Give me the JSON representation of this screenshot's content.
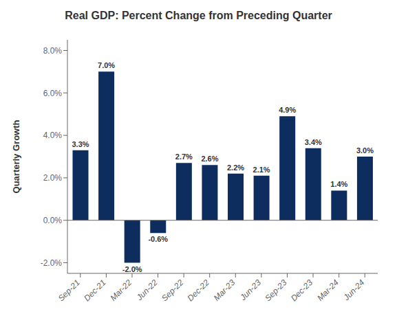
{
  "chart_data": {
    "type": "bar",
    "title": "Real GDP: Percent Change from Preceding Quarter",
    "ylabel": "Quarterly Growth",
    "categories": [
      "Sep-21",
      "Dec-21",
      "Mar-22",
      "Jun-22",
      "Sep-22",
      "Dec-22",
      "Mar-23",
      "Jun-23",
      "Sep-23",
      "Dec-23",
      "Mar-24",
      "Jun-24"
    ],
    "values": [
      3.3,
      7.0,
      -2.0,
      -0.6,
      2.7,
      2.6,
      2.2,
      2.1,
      4.9,
      3.4,
      1.4,
      3.0
    ],
    "value_labels": [
      "3.3%",
      "7.0%",
      "-2.0%",
      "-0.6%",
      "2.7%",
      "2.6%",
      "2.2%",
      "2.1%",
      "4.9%",
      "3.4%",
      "1.4%",
      "3.0%"
    ],
    "data_labels": true,
    "color": "#0d2d5e",
    "ylim": [
      -2.5,
      8.5
    ],
    "yticks": [
      {
        "value": -2.0,
        "label": "-2.0%"
      },
      {
        "value": 0.0,
        "label": "0.0%"
      },
      {
        "value": 2.0,
        "label": "2.0%"
      },
      {
        "value": 4.0,
        "label": "4.0%"
      },
      {
        "value": 6.0,
        "label": "6.0%"
      },
      {
        "value": 8.0,
        "label": "8.0%"
      }
    ],
    "grid": false
  }
}
